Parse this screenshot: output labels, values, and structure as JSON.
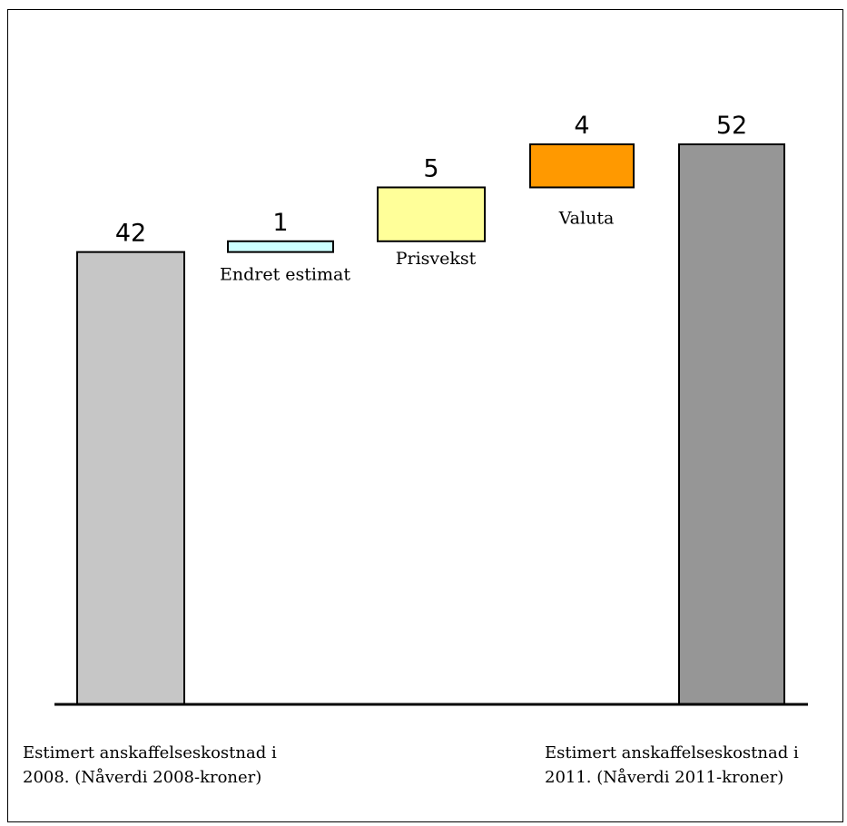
{
  "chart_data": {
    "type": "waterfall",
    "title": "",
    "ylim": [
      0,
      52
    ],
    "bars": [
      {
        "kind": "total",
        "value": 42,
        "value_label": "42",
        "label": "",
        "color": "#C6C6C6"
      },
      {
        "kind": "delta",
        "value": 1,
        "value_label": "1",
        "label": "Endret estimat",
        "color": "#CCFFFF"
      },
      {
        "kind": "delta",
        "value": 5,
        "value_label": "5",
        "label": "Prisvekst",
        "color": "#FFFF99"
      },
      {
        "kind": "delta",
        "value": 4,
        "value_label": "4",
        "label": "Valuta",
        "color": "#FF9900"
      },
      {
        "kind": "total",
        "value": 52,
        "value_label": "52",
        "label": "",
        "color": "#969696"
      }
    ],
    "category_labels": [
      {
        "lines": [
          "Estimert anskaffelseskostnad i",
          "2008. (Nåverdi 2008-kroner)"
        ]
      },
      {
        "lines": [
          "Estimert anskaffelseskostnad i",
          "2011. (Nåverdi 2011-kroner)"
        ]
      }
    ]
  }
}
